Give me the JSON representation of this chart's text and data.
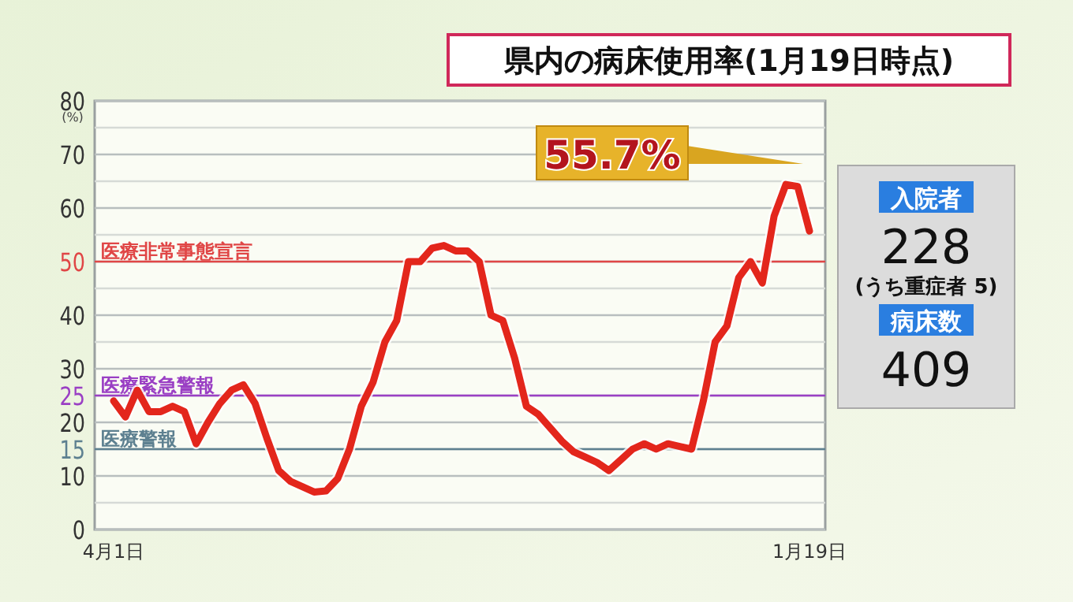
{
  "chart_data": [
    {
      "type": "line",
      "title": "県内の病床使用率(1月19日時点)",
      "ylabel": "(%)",
      "categories": [
        "4月1日",
        null,
        null,
        null,
        null,
        null,
        null,
        null,
        null,
        null,
        null,
        null,
        null,
        null,
        null,
        null,
        null,
        null,
        null,
        null,
        null,
        null,
        null,
        null,
        null,
        null,
        null,
        null,
        null,
        null,
        null,
        null,
        null,
        null,
        null,
        null,
        null,
        null,
        null,
        null,
        null,
        null,
        null,
        null,
        null,
        null,
        null,
        null,
        null,
        null,
        null,
        null,
        null,
        null,
        null,
        null,
        null,
        null,
        null,
        "1月19日"
      ],
      "series": [
        {
          "color": "#e3261c",
          "values": [
            24,
            21,
            26,
            22,
            22,
            23,
            22,
            16,
            20,
            23.5,
            26,
            27,
            23.5,
            17,
            11,
            9,
            8,
            7,
            7.2,
            9.5,
            15,
            23,
            27.5,
            35,
            39,
            50,
            50,
            52.5,
            53,
            52,
            52,
            50,
            40,
            39,
            32,
            23,
            21.5,
            19,
            16.5,
            14.5,
            13.5,
            12.5,
            11,
            13,
            15,
            16,
            15,
            16,
            15.5,
            15,
            24,
            35,
            38,
            47,
            50,
            46,
            58.5,
            64.4,
            64,
            55.7
          ]
        }
      ],
      "ylim": [
        0,
        80
      ],
      "yticks": [
        0,
        {
          "value": 5,
          "label": null
        },
        10,
        15,
        20,
        25,
        30,
        {
          "value": 35,
          "label": null
        },
        40,
        {
          "value": 45,
          "label": null
        },
        50,
        {
          "value": 55,
          "label": null
        },
        60,
        {
          "value": 65,
          "label": null
        },
        70,
        {
          "value": 75,
          "label": null
        },
        80
      ],
      "grid": "y",
      "line_style": "solid",
      "marker": "none",
      "ref_lines": [
        {
          "axis": "y",
          "value": 50,
          "label": "医療非常事態宣言",
          "color": "#e04646"
        },
        {
          "axis": "y",
          "value": 25,
          "label": "医療緊急警報",
          "color": "#9a3fc4"
        },
        {
          "axis": "y",
          "value": 15,
          "label": "医療警報",
          "color": "#5d8090"
        }
      ],
      "annotations": [
        "55.7%"
      ]
    },
    {
      "type": "other",
      "annotations": [
        "入院者",
        "228",
        "(うち重症者 5)",
        "病床数",
        "409"
      ]
    }
  ]
}
